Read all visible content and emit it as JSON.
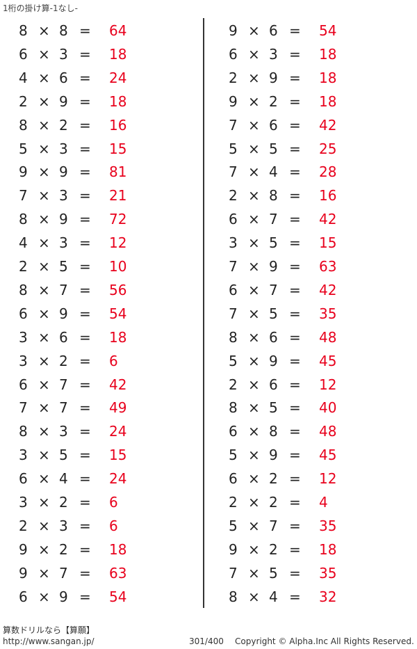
{
  "title": "1桁の掛け算-1なし-",
  "operator_times": "×",
  "operator_equals": "=",
  "colors": {
    "answer": "#e8001c",
    "text": "#222222"
  },
  "left_column": [
    [
      "8",
      "8",
      "64"
    ],
    [
      "6",
      "3",
      "18"
    ],
    [
      "4",
      "6",
      "24"
    ],
    [
      "2",
      "9",
      "18"
    ],
    [
      "8",
      "2",
      "16"
    ],
    [
      "5",
      "3",
      "15"
    ],
    [
      "9",
      "9",
      "81"
    ],
    [
      "7",
      "3",
      "21"
    ],
    [
      "8",
      "9",
      "72"
    ],
    [
      "4",
      "3",
      "12"
    ],
    [
      "2",
      "5",
      "10"
    ],
    [
      "8",
      "7",
      "56"
    ],
    [
      "6",
      "9",
      "54"
    ],
    [
      "3",
      "6",
      "18"
    ],
    [
      "3",
      "2",
      "6"
    ],
    [
      "6",
      "7",
      "42"
    ],
    [
      "7",
      "7",
      "49"
    ],
    [
      "8",
      "3",
      "24"
    ],
    [
      "3",
      "5",
      "15"
    ],
    [
      "6",
      "4",
      "24"
    ],
    [
      "3",
      "2",
      "6"
    ],
    [
      "2",
      "3",
      "6"
    ],
    [
      "9",
      "2",
      "18"
    ],
    [
      "9",
      "7",
      "63"
    ],
    [
      "6",
      "9",
      "54"
    ]
  ],
  "right_column": [
    [
      "9",
      "6",
      "54"
    ],
    [
      "6",
      "3",
      "18"
    ],
    [
      "2",
      "9",
      "18"
    ],
    [
      "9",
      "2",
      "18"
    ],
    [
      "7",
      "6",
      "42"
    ],
    [
      "5",
      "5",
      "25"
    ],
    [
      "7",
      "4",
      "28"
    ],
    [
      "2",
      "8",
      "16"
    ],
    [
      "6",
      "7",
      "42"
    ],
    [
      "3",
      "5",
      "15"
    ],
    [
      "7",
      "9",
      "63"
    ],
    [
      "6",
      "7",
      "42"
    ],
    [
      "7",
      "5",
      "35"
    ],
    [
      "8",
      "6",
      "48"
    ],
    [
      "5",
      "9",
      "45"
    ],
    [
      "2",
      "6",
      "12"
    ],
    [
      "8",
      "5",
      "40"
    ],
    [
      "6",
      "8",
      "48"
    ],
    [
      "5",
      "9",
      "45"
    ],
    [
      "6",
      "2",
      "12"
    ],
    [
      "2",
      "2",
      "4"
    ],
    [
      "5",
      "7",
      "35"
    ],
    [
      "9",
      "2",
      "18"
    ],
    [
      "7",
      "5",
      "35"
    ],
    [
      "8",
      "4",
      "32"
    ]
  ],
  "footer": {
    "brand": "算数ドリルなら【算願】",
    "url": "http://www.sangan.jp/",
    "page": "301/400",
    "copyright": "Copyright © Alpha.Inc All Rights Reserved."
  }
}
